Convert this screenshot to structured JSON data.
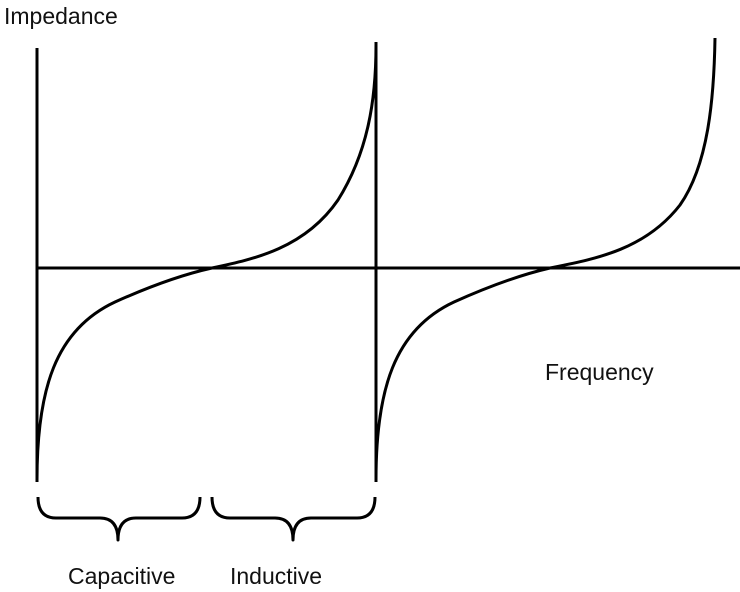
{
  "axes": {
    "y_label": "Impedance",
    "x_label": "Frequency"
  },
  "regions": [
    {
      "label": "Capacitive"
    },
    {
      "label": "Inductive"
    }
  ]
}
